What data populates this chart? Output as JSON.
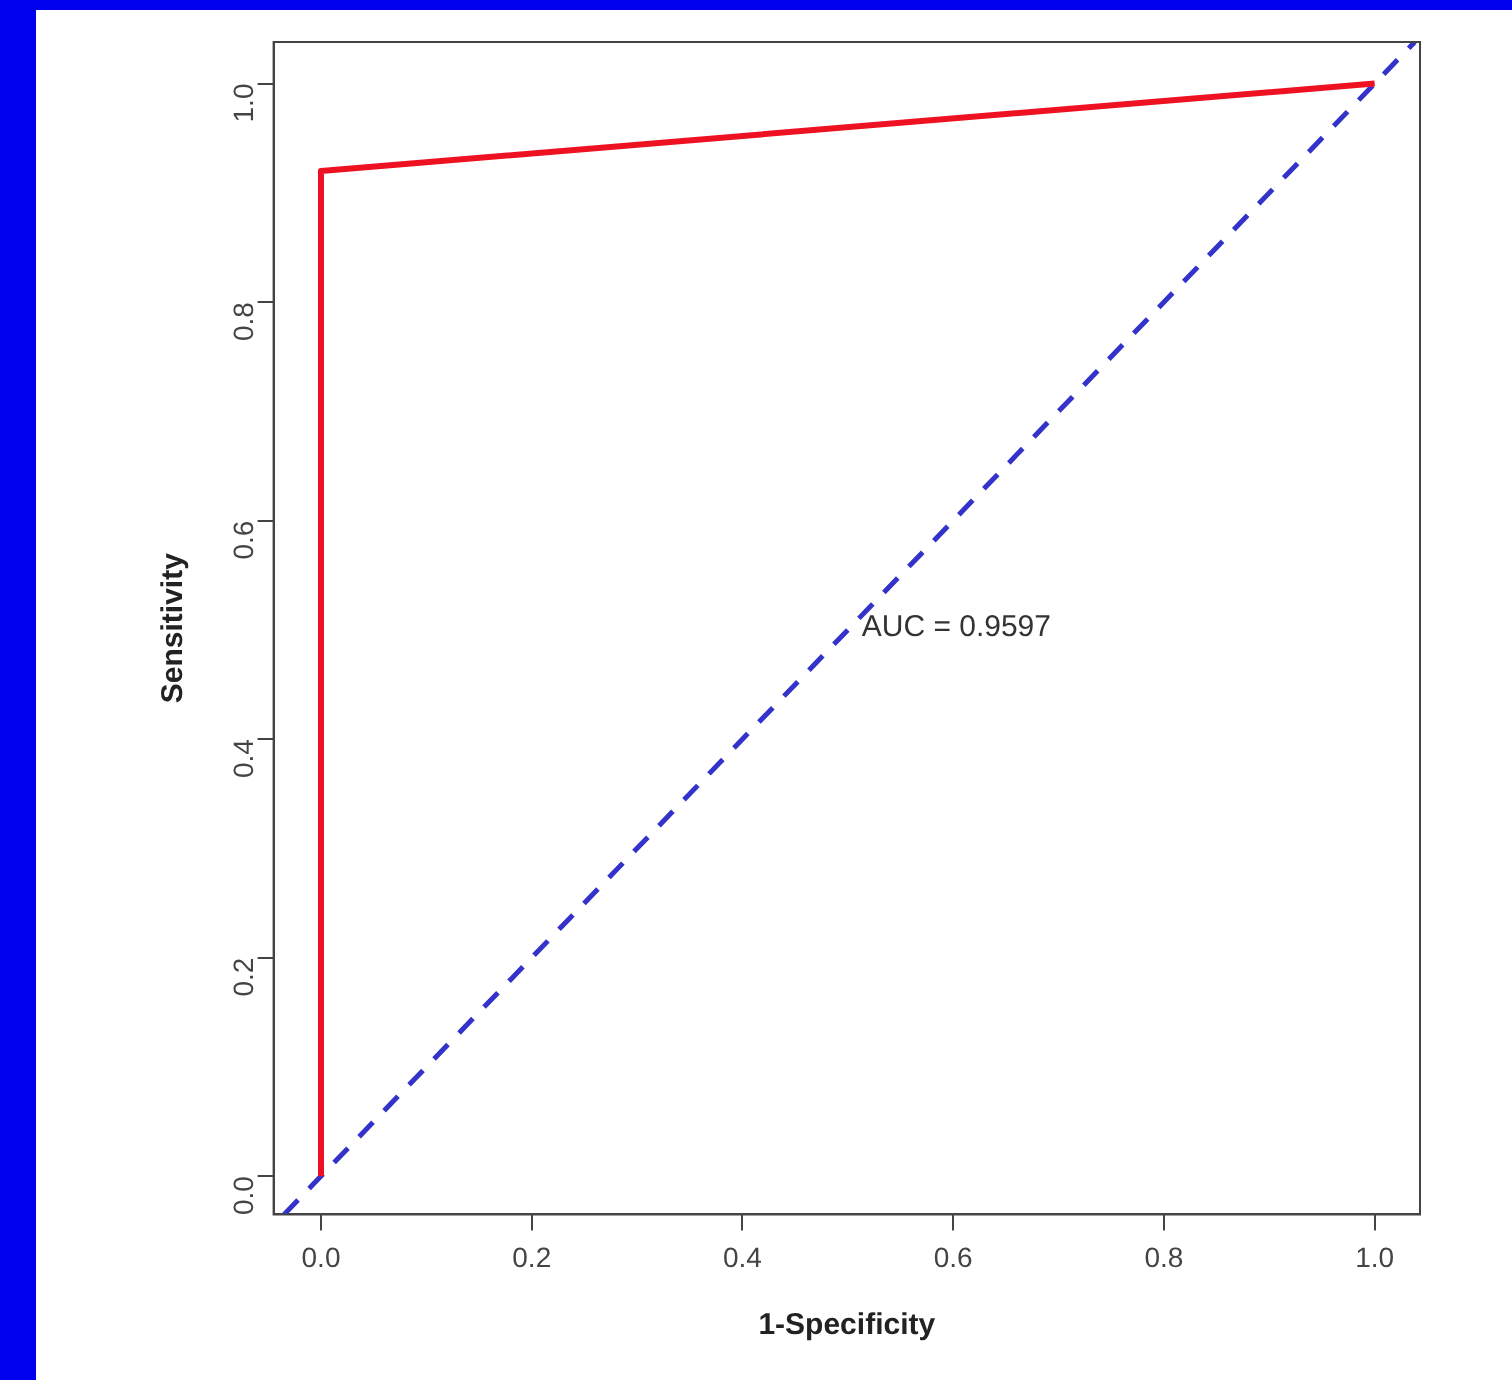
{
  "chart_data": {
    "type": "line",
    "xlabel": "1-Specificity",
    "ylabel": "Sensitivity",
    "xlim": [
      -0.045,
      1.043
    ],
    "ylim": [
      -0.035,
      1.038
    ],
    "xticks": [
      {
        "value": 0,
        "label": "0.0"
      },
      0.2,
      0.4,
      0.6,
      0.8,
      {
        "value": 1,
        "label": "1.0"
      }
    ],
    "yticks": [
      {
        "value": 0,
        "label": "0.0"
      },
      0.2,
      0.4,
      0.6,
      0.8,
      {
        "value": 1,
        "label": "1.0"
      }
    ],
    "grid": false,
    "legend": false,
    "marker": "none",
    "series": [
      {
        "color": "#ee1122",
        "x": [
          0,
          0,
          1
        ],
        "values": [
          0,
          0.92,
          1
        ],
        "line_style": "solid"
      },
      {
        "color": "#3333cc",
        "x": [
          -0.035,
          1.038
        ],
        "values": [
          -0.035,
          1.038
        ],
        "line_style": "dashed"
      }
    ],
    "annotations": [
      "AUC = 0.9597"
    ]
  }
}
